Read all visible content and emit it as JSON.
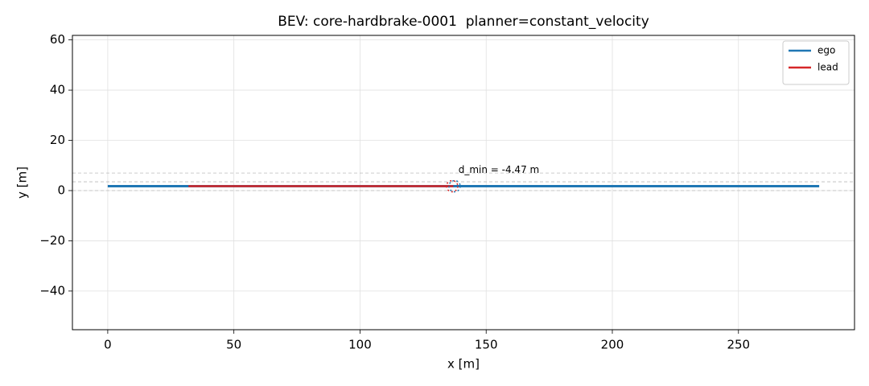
{
  "chart_data": {
    "type": "line",
    "title": "BEV: core-hardbrake-0001  planner=constant_velocity",
    "xlabel": "x [m]",
    "ylabel": "y [m]",
    "series": [
      {
        "name": "ego",
        "color": "#1f77b4",
        "x": [
          0,
          282
        ],
        "y": [
          1.75,
          1.75
        ]
      },
      {
        "name": "lead",
        "color": "#d62728",
        "x": [
          32,
          137
        ],
        "y": [
          1.75,
          1.75
        ]
      }
    ],
    "hlines": [
      0,
      3.5,
      7
    ],
    "circles": [
      {
        "x": 136.5,
        "y": 1.75,
        "color": "#d62728"
      },
      {
        "x": 137.5,
        "y": 1.75,
        "color": "#1f77b4"
      }
    ],
    "annotation": {
      "text": "d_min = -4.47 m",
      "x": 139,
      "y": 7.5
    },
    "xlim": [
      -14,
      296
    ],
    "ylim": [
      -55.4,
      61.8
    ],
    "xticks": [
      0,
      50,
      100,
      150,
      200,
      250
    ],
    "yticks": [
      {
        "value": -40,
        "label": "−40"
      },
      {
        "value": -20,
        "label": "−20"
      },
      0,
      20,
      40,
      60
    ],
    "grid": true,
    "legend": "upper right"
  }
}
